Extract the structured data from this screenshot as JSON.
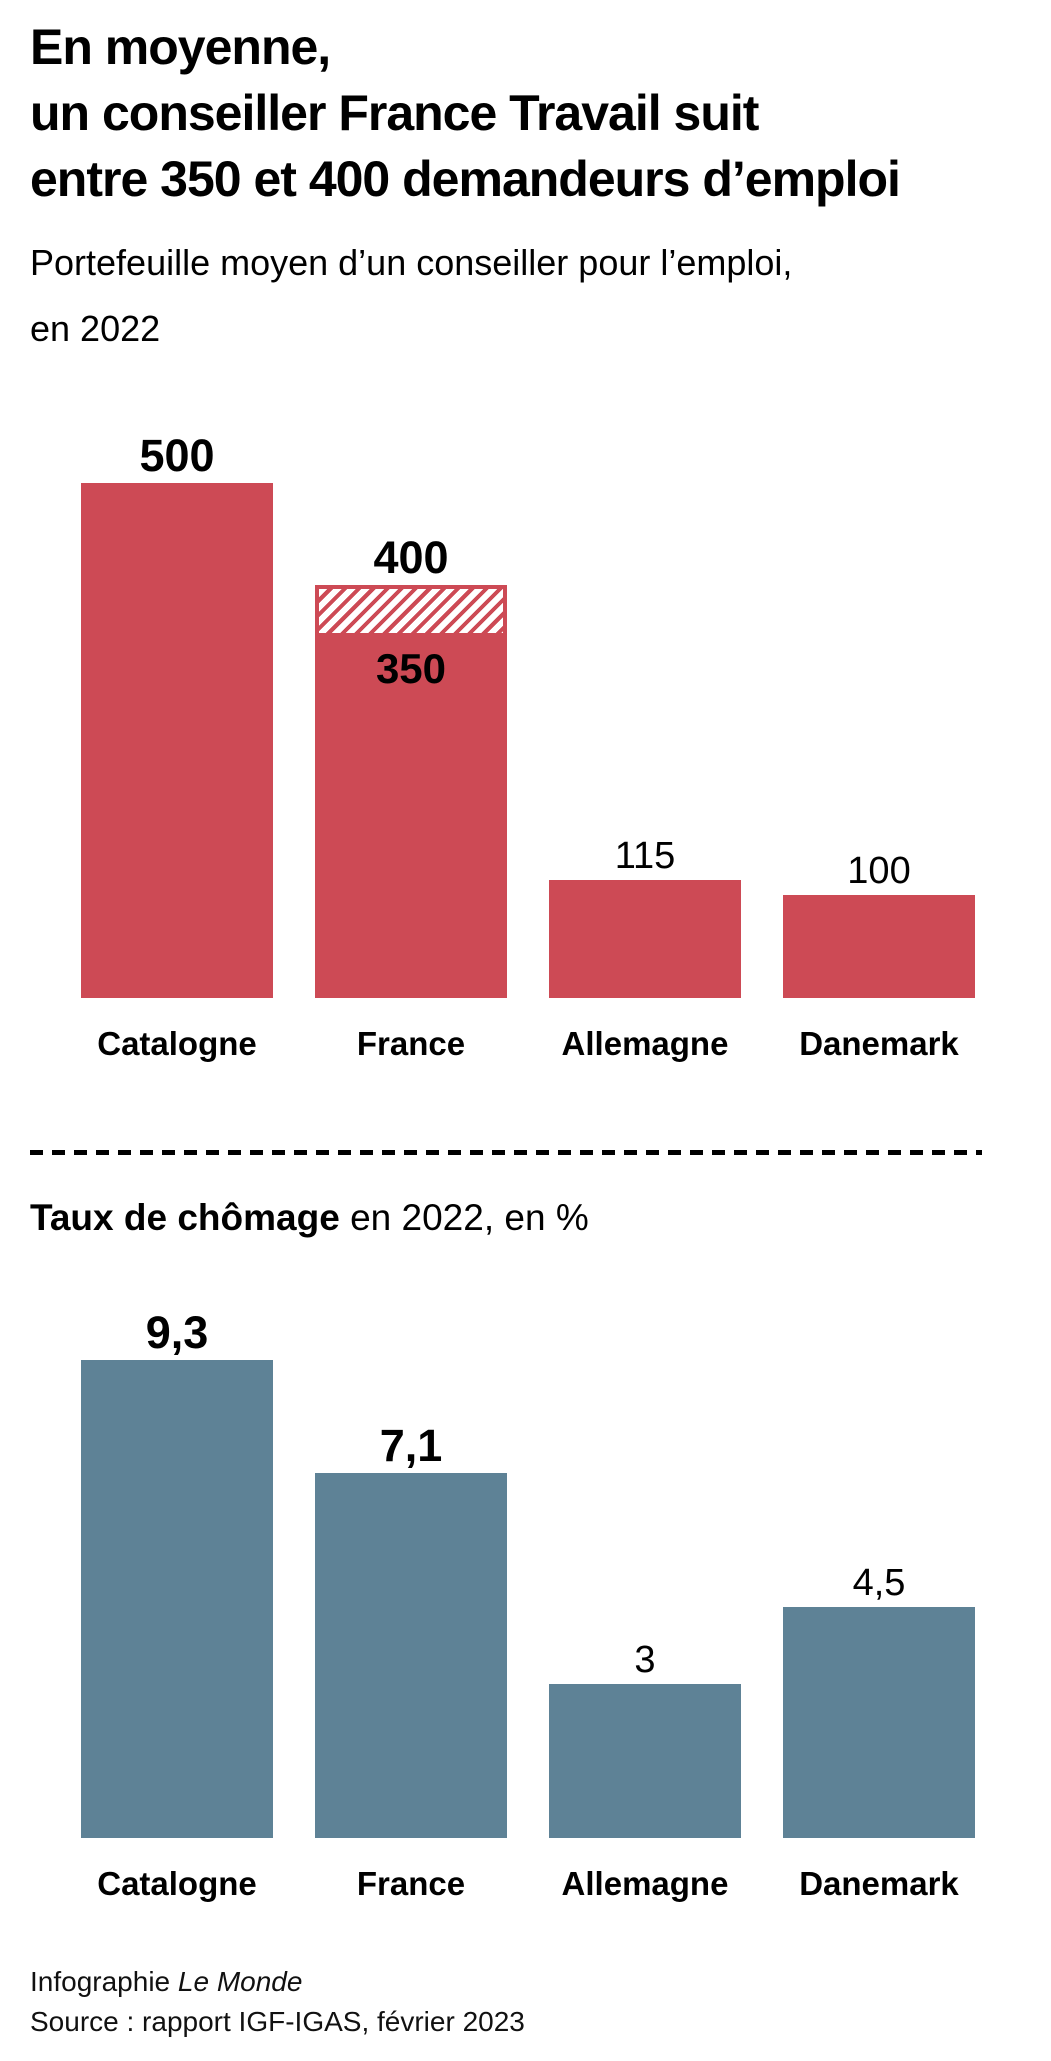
{
  "title": {
    "line1": "En moyenne,",
    "line2": "un conseiller France Travail suit",
    "line3": "entre 350 et 400 demandeurs d’emploi"
  },
  "subtitle": {
    "line1": "Portefeuille moyen d’un conseiller pour l’emploi,",
    "line2": "en 2022"
  },
  "section2": {
    "title_bold": "Taux de chômage",
    "title_rest": " en 2022, en %"
  },
  "footer": {
    "line1_prefix": "Infographie ",
    "line1_italic": "Le Monde",
    "line2": "Source : rapport IGF-IGAS, février 2023"
  },
  "colors": {
    "portfolio_bar": "#cd4a55",
    "unemployment_bar": "#5e8296",
    "hatch_background": "#ffffff",
    "text": "#000000",
    "background": "#ffffff"
  },
  "chart_data": [
    {
      "type": "bar",
      "title": "Portefeuille moyen d’un conseiller pour l’emploi, en 2022",
      "categories": [
        "Catalogne",
        "France",
        "Allemagne",
        "Danemark"
      ],
      "values": [
        500,
        375,
        115,
        100
      ],
      "bar_color": "#cd4a55",
      "xlabel": "",
      "ylabel": "",
      "ylim": [
        0,
        500
      ],
      "grid": false,
      "legend": "none",
      "bars": [
        {
          "category": "Catalogne",
          "value": 500,
          "label": "500",
          "bold": true
        },
        {
          "category": "France",
          "value_min": 350,
          "value_max": 400,
          "label_max": "400",
          "label_min": "350",
          "bold": true,
          "note": "hatched-range-350-400"
        },
        {
          "category": "Allemagne",
          "value": 115,
          "label": "115",
          "bold": false
        },
        {
          "category": "Danemark",
          "value": 100,
          "label": "100",
          "bold": false
        }
      ]
    },
    {
      "type": "bar",
      "title": "Taux de chômage en 2022, en %",
      "categories": [
        "Catalogne",
        "France",
        "Allemagne",
        "Danemark"
      ],
      "values": [
        9.3,
        7.1,
        3,
        4.5
      ],
      "bar_color": "#5e8296",
      "xlabel": "",
      "ylabel": "",
      "ylim": [
        0,
        9.3
      ],
      "grid": false,
      "legend": "none",
      "bars": [
        {
          "category": "Catalogne",
          "value": 9.3,
          "label": "9,3",
          "bold": true
        },
        {
          "category": "France",
          "value": 7.1,
          "label": "7,1",
          "bold": true
        },
        {
          "category": "Allemagne",
          "value": 3,
          "label": "3",
          "bold": false
        },
        {
          "category": "Danemark",
          "value": 4.5,
          "label": "4,5",
          "bold": false
        }
      ]
    }
  ]
}
